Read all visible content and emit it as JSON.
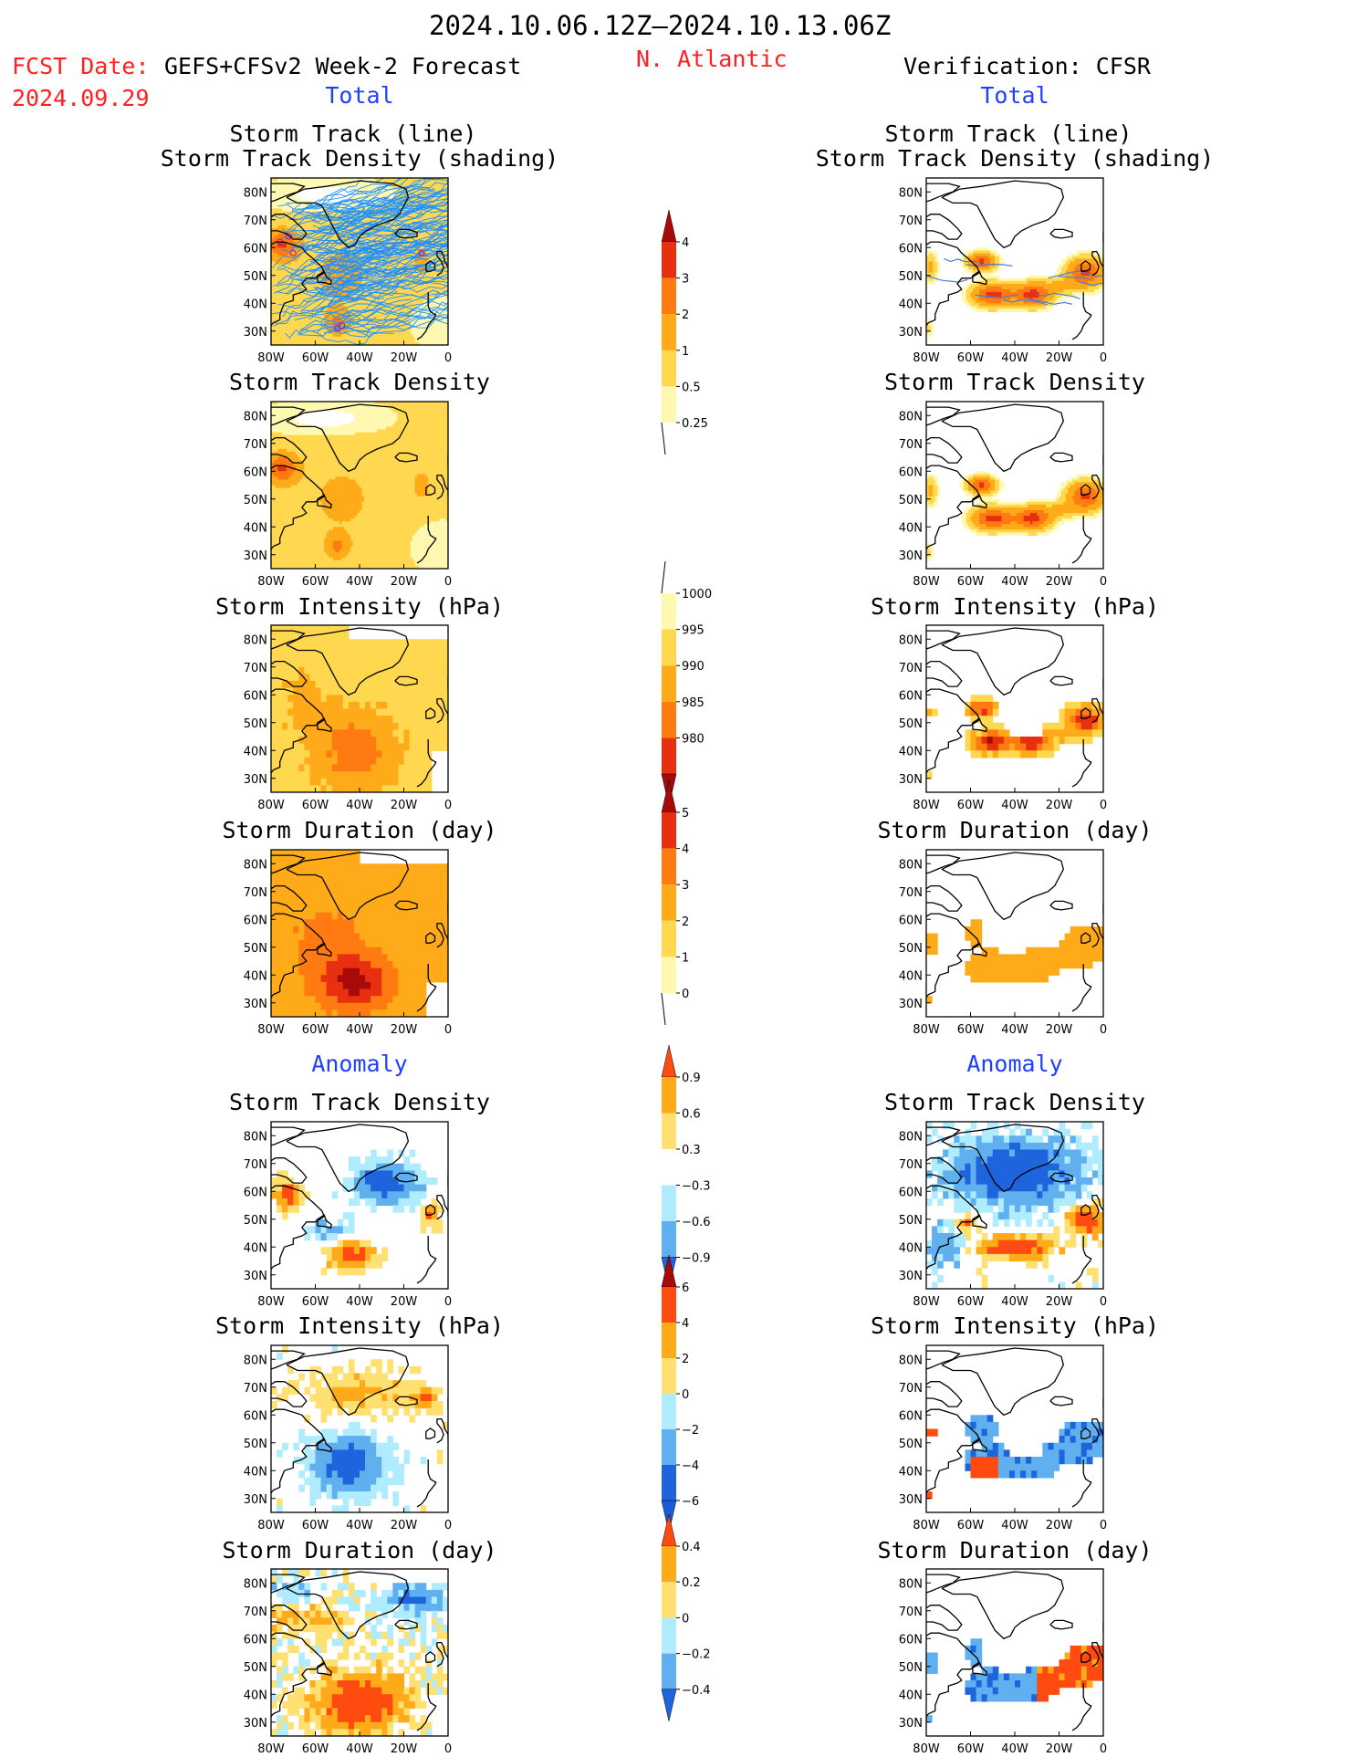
{
  "header": {
    "period": "2024.10.06.12Z–2024.10.13.06Z",
    "fcst_label": "FCST Date:",
    "fcst_model": "GEFS+CFSv2 Week-2 Forecast",
    "fcst_date": "2024.09.29",
    "region": "N. Atlantic",
    "verification": "Verification: CFSR"
  },
  "sections": {
    "total": "Total",
    "anomaly": "Anomaly"
  },
  "titles": {
    "track_line": "Storm Track (line)",
    "track_shading": "Storm Track Density (shading)",
    "density": "Storm Track Density",
    "intensity": "Storm Intensity (hPa)",
    "duration": "Storm Duration (day)"
  },
  "colors": {
    "warm": [
      "#fff8b0",
      "#ffd850",
      "#ffaa18",
      "#ff7a10",
      "#e83010",
      "#a80a0a"
    ],
    "anom_warm": [
      "#ffe070",
      "#ffaa18",
      "#ff4a10"
    ],
    "anom_cool": [
      "#b0ecff",
      "#60b0f0",
      "#1e64dc"
    ],
    "track_line": "#1e90ff",
    "coast": "#000000"
  },
  "chart_data": [
    {
      "id": "fc-track",
      "type": "heatmap",
      "title": "Storm Track (line) / Storm Track Density (shading)",
      "column": "forecast",
      "lon_ticks": [
        "80W",
        "60W",
        "40W",
        "20W",
        "0"
      ],
      "lat_ticks": [
        "80N",
        "70N",
        "60N",
        "50N",
        "40N",
        "30N"
      ],
      "field": "track_density",
      "tracks": true
    },
    {
      "id": "fc-density",
      "type": "heatmap",
      "title": "Storm Track Density",
      "column": "forecast",
      "lon_ticks": [
        "80W",
        "60W",
        "40W",
        "20W",
        "0"
      ],
      "lat_ticks": [
        "80N",
        "70N",
        "60N",
        "50N",
        "40N",
        "30N"
      ],
      "field": "track_density"
    },
    {
      "id": "fc-intensity",
      "type": "heatmap",
      "title": "Storm Intensity (hPa)",
      "column": "forecast",
      "lon_ticks": [
        "80W",
        "60W",
        "40W",
        "20W",
        "0"
      ],
      "lat_ticks": [
        "80N",
        "70N",
        "60N",
        "50N",
        "40N",
        "30N"
      ],
      "field": "intensity"
    },
    {
      "id": "fc-duration",
      "type": "heatmap",
      "title": "Storm Duration (day)",
      "column": "forecast",
      "lon_ticks": [
        "80W",
        "60W",
        "40W",
        "20W",
        "0"
      ],
      "lat_ticks": [
        "80N",
        "70N",
        "60N",
        "50N",
        "40N",
        "30N"
      ],
      "field": "duration"
    },
    {
      "id": "fc-density-anom",
      "type": "heatmap",
      "title": "Storm Track Density",
      "column": "forecast",
      "lon_ticks": [
        "80W",
        "60W",
        "40W",
        "20W",
        "0"
      ],
      "lat_ticks": [
        "80N",
        "70N",
        "60N",
        "50N",
        "40N",
        "30N"
      ],
      "field": "density_anomaly"
    },
    {
      "id": "fc-intensity-anom",
      "type": "heatmap",
      "title": "Storm Intensity (hPa)",
      "column": "forecast",
      "lon_ticks": [
        "80W",
        "60W",
        "40W",
        "20W",
        "0"
      ],
      "lat_ticks": [
        "80N",
        "70N",
        "60N",
        "50N",
        "40N",
        "30N"
      ],
      "field": "intensity_anomaly"
    },
    {
      "id": "fc-duration-anom",
      "type": "heatmap",
      "title": "Storm Duration (day)",
      "column": "forecast",
      "lon_ticks": [
        "80W",
        "60W",
        "40W",
        "20W",
        "0"
      ],
      "lat_ticks": [
        "80N",
        "70N",
        "60N",
        "50N",
        "40N",
        "30N"
      ],
      "field": "duration_anomaly"
    },
    {
      "id": "vf-track",
      "type": "heatmap",
      "title": "Storm Track (line) / Storm Track Density (shading)",
      "column": "verification",
      "lon_ticks": [
        "80W",
        "60W",
        "40W",
        "20W",
        "0"
      ],
      "lat_ticks": [
        "80N",
        "70N",
        "60N",
        "50N",
        "40N",
        "30N"
      ],
      "field": "track_density",
      "tracks": true
    },
    {
      "id": "vf-density",
      "type": "heatmap",
      "title": "Storm Track Density",
      "column": "verification",
      "lon_ticks": [
        "80W",
        "60W",
        "40W",
        "20W",
        "0"
      ],
      "lat_ticks": [
        "80N",
        "70N",
        "60N",
        "50N",
        "40N",
        "30N"
      ],
      "field": "track_density"
    },
    {
      "id": "vf-intensity",
      "type": "heatmap",
      "title": "Storm Intensity (hPa)",
      "column": "verification",
      "lon_ticks": [
        "80W",
        "60W",
        "40W",
        "20W",
        "0"
      ],
      "lat_ticks": [
        "80N",
        "70N",
        "60N",
        "50N",
        "40N",
        "30N"
      ],
      "field": "intensity"
    },
    {
      "id": "vf-duration",
      "type": "heatmap",
      "title": "Storm Duration (day)",
      "column": "verification",
      "lon_ticks": [
        "80W",
        "60W",
        "40W",
        "20W",
        "0"
      ],
      "lat_ticks": [
        "80N",
        "70N",
        "60N",
        "50N",
        "40N",
        "30N"
      ],
      "field": "duration"
    },
    {
      "id": "vf-density-anom",
      "type": "heatmap",
      "title": "Storm Track Density",
      "column": "verification",
      "lon_ticks": [
        "80W",
        "60W",
        "40W",
        "20W",
        "0"
      ],
      "lat_ticks": [
        "80N",
        "70N",
        "60N",
        "50N",
        "40N",
        "30N"
      ],
      "field": "density_anomaly"
    },
    {
      "id": "vf-intensity-anom",
      "type": "heatmap",
      "title": "Storm Intensity (hPa)",
      "column": "verification",
      "lon_ticks": [
        "80W",
        "60W",
        "40W",
        "20W",
        "0"
      ],
      "lat_ticks": [
        "80N",
        "70N",
        "60N",
        "50N",
        "40N",
        "30N"
      ],
      "field": "intensity_anomaly"
    },
    {
      "id": "vf-duration-anom",
      "type": "heatmap",
      "title": "Storm Duration (day)",
      "column": "verification",
      "lon_ticks": [
        "80W",
        "60W",
        "40W",
        "20W",
        "0"
      ],
      "lat_ticks": [
        "80N",
        "70N",
        "60N",
        "50N",
        "40N",
        "30N"
      ],
      "field": "duration_anomaly"
    }
  ],
  "colorbars": [
    {
      "id": "cb-density",
      "labels": [
        "4",
        "3",
        "2",
        "1",
        "0.5",
        "0.25"
      ]
    },
    {
      "id": "cb-intensity",
      "labels": [
        "1000",
        "995",
        "990",
        "985",
        "980"
      ]
    },
    {
      "id": "cb-duration",
      "labels": [
        "5",
        "4",
        "3",
        "2",
        "1",
        "0"
      ]
    },
    {
      "id": "cb-density-anom",
      "labels": [
        "0.9",
        "0.6",
        "0.3",
        "−0.3",
        "−0.6",
        "−0.9"
      ]
    },
    {
      "id": "cb-intensity-anom",
      "labels": [
        "6",
        "4",
        "2",
        "0",
        "−2",
        "−4",
        "−6"
      ]
    },
    {
      "id": "cb-duration-anom",
      "labels": [
        "0.4",
        "0.2",
        "0",
        "−0.2",
        "−0.4"
      ]
    }
  ]
}
